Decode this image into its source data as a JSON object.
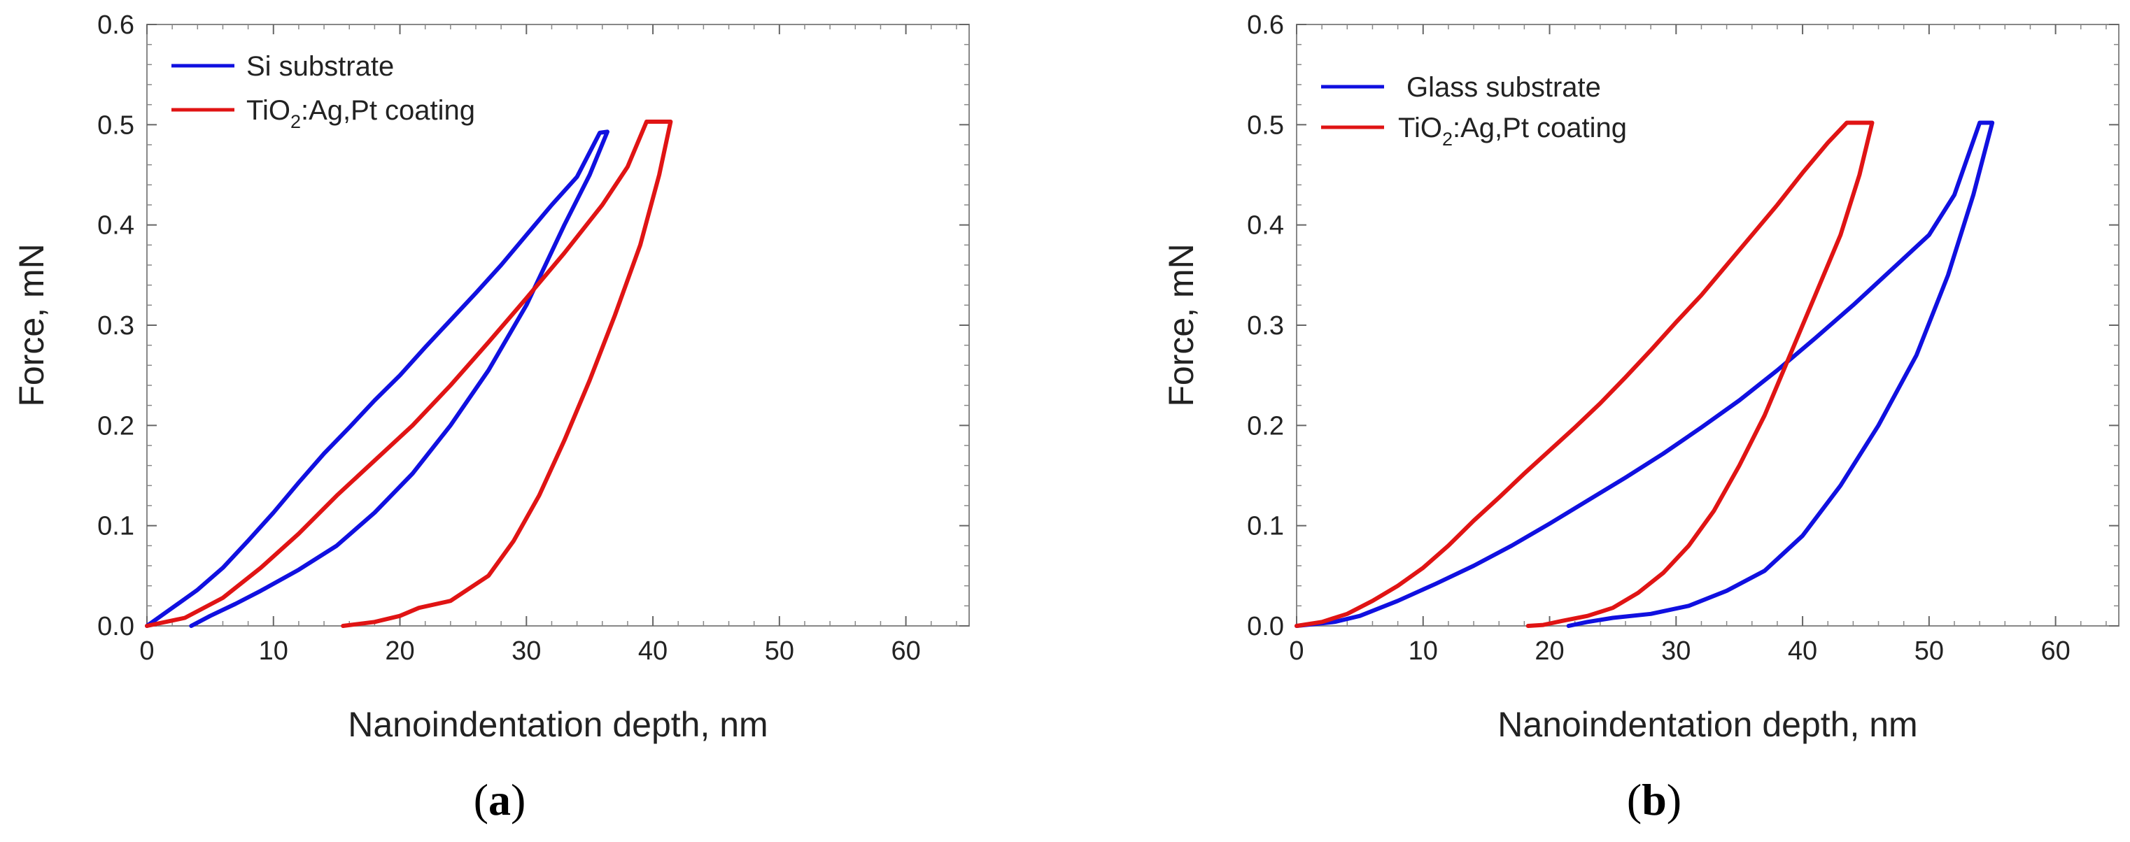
{
  "figure": {
    "panels": [
      "a",
      "b"
    ]
  },
  "chart_data": [
    {
      "type": "line",
      "panel_label": "(a)",
      "panel_letter": "a",
      "xlabel": "Nanoindentation depth,  nm",
      "ylabel": "Force,  mN",
      "xlim": [
        0,
        65
      ],
      "ylim": [
        0,
        0.6
      ],
      "xticks": [
        0,
        10,
        20,
        30,
        40,
        50,
        60
      ],
      "yticks": [
        0.0,
        0.1,
        0.2,
        0.3,
        0.4,
        0.5,
        0.6
      ],
      "ytick_labels": [
        "0.0",
        "0.1",
        "0.2",
        "0.3",
        "0.4",
        "0.5",
        "0.6"
      ],
      "legend_position": "top-left",
      "series": [
        {
          "name": "Si substrate",
          "legend_label": "Si substrate",
          "color": "#1010e0",
          "loading": [
            [
              0,
              0
            ],
            [
              2,
              0.018
            ],
            [
              4,
              0.036
            ],
            [
              6,
              0.058
            ],
            [
              8,
              0.085
            ],
            [
              10,
              0.113
            ],
            [
              12,
              0.143
            ],
            [
              14,
              0.172
            ],
            [
              16,
              0.198
            ],
            [
              18,
              0.225
            ],
            [
              20,
              0.25
            ],
            [
              22,
              0.278
            ],
            [
              24,
              0.305
            ],
            [
              26,
              0.332
            ],
            [
              28,
              0.36
            ],
            [
              30,
              0.39
            ],
            [
              32,
              0.42
            ],
            [
              34,
              0.448
            ],
            [
              35.8,
              0.492
            ]
          ],
          "hold": [
            [
              35.8,
              0.492
            ],
            [
              36.4,
              0.493
            ]
          ],
          "unloading": [
            [
              36.4,
              0.493
            ],
            [
              35,
              0.45
            ],
            [
              33,
              0.4
            ],
            [
              30,
              0.32
            ],
            [
              27,
              0.255
            ],
            [
              24,
              0.2
            ],
            [
              21,
              0.152
            ],
            [
              18,
              0.113
            ],
            [
              15,
              0.08
            ],
            [
              12,
              0.056
            ],
            [
              9,
              0.035
            ],
            [
              7,
              0.022
            ],
            [
              5,
              0.01
            ],
            [
              3.5,
              0
            ]
          ]
        },
        {
          "name": "TiO2:Ag,Pt coating",
          "legend_label": "TiO",
          "legend_sub": "2",
          "legend_rest": ":Ag,Pt coating",
          "color": "#e01414",
          "loading": [
            [
              0,
              0
            ],
            [
              3,
              0.008
            ],
            [
              6,
              0.028
            ],
            [
              9,
              0.058
            ],
            [
              12,
              0.092
            ],
            [
              15,
              0.13
            ],
            [
              18,
              0.165
            ],
            [
              21,
              0.2
            ],
            [
              24,
              0.24
            ],
            [
              27,
              0.283
            ],
            [
              30,
              0.327
            ],
            [
              33,
              0.372
            ],
            [
              36,
              0.42
            ],
            [
              38,
              0.458
            ],
            [
              39.5,
              0.503
            ]
          ],
          "hold": [
            [
              39.5,
              0.503
            ],
            [
              41.4,
              0.503
            ]
          ],
          "unloading": [
            [
              41.4,
              0.503
            ],
            [
              40.5,
              0.45
            ],
            [
              39,
              0.38
            ],
            [
              37,
              0.31
            ],
            [
              35,
              0.245
            ],
            [
              33,
              0.185
            ],
            [
              31,
              0.13
            ],
            [
              29,
              0.085
            ],
            [
              27,
              0.05
            ],
            [
              24,
              0.025
            ],
            [
              21.5,
              0.018
            ],
            [
              20,
              0.01
            ],
            [
              18,
              0.004
            ],
            [
              15.5,
              0
            ]
          ]
        }
      ]
    },
    {
      "type": "line",
      "panel_label": "(b)",
      "panel_letter": "b",
      "xlabel": "Nanoindentation depth,  nm",
      "ylabel": "Force,  mN",
      "xlim": [
        0,
        65
      ],
      "ylim": [
        0,
        0.6
      ],
      "xticks": [
        0,
        10,
        20,
        30,
        40,
        50,
        60
      ],
      "yticks": [
        0.0,
        0.1,
        0.2,
        0.3,
        0.4,
        0.5,
        0.6
      ],
      "ytick_labels": [
        "0.0",
        "0.1",
        "0.2",
        "0.3",
        "0.4",
        "0.5",
        "0.6"
      ],
      "legend_position": "top-left",
      "series": [
        {
          "name": "Glass substrate",
          "legend_label": "Glass substrate",
          "color": "#1010e0",
          "loading": [
            [
              0,
              0
            ],
            [
              3,
              0.004
            ],
            [
              5,
              0.01
            ],
            [
              8,
              0.025
            ],
            [
              11,
              0.042
            ],
            [
              14,
              0.06
            ],
            [
              17,
              0.08
            ],
            [
              20,
              0.102
            ],
            [
              23,
              0.125
            ],
            [
              26,
              0.148
            ],
            [
              29,
              0.172
            ],
            [
              32,
              0.198
            ],
            [
              35,
              0.225
            ],
            [
              38,
              0.255
            ],
            [
              41,
              0.287
            ],
            [
              44,
              0.32
            ],
            [
              47,
              0.355
            ],
            [
              50,
              0.39
            ],
            [
              52,
              0.43
            ],
            [
              54,
              0.502
            ]
          ],
          "hold": [
            [
              54,
              0.502
            ],
            [
              55,
              0.502
            ]
          ],
          "unloading": [
            [
              55,
              0.502
            ],
            [
              53.5,
              0.43
            ],
            [
              51.5,
              0.35
            ],
            [
              49,
              0.27
            ],
            [
              46,
              0.2
            ],
            [
              43,
              0.14
            ],
            [
              40,
              0.09
            ],
            [
              37,
              0.055
            ],
            [
              34,
              0.035
            ],
            [
              31,
              0.02
            ],
            [
              28,
              0.012
            ],
            [
              25,
              0.008
            ],
            [
              23,
              0.004
            ],
            [
              21.5,
              0
            ]
          ]
        },
        {
          "name": "TiO2:Ag,Pt coating",
          "legend_label": "TiO",
          "legend_sub": "2",
          "legend_rest": ":Ag,Pt coating",
          "color": "#e01414",
          "loading": [
            [
              0,
              0
            ],
            [
              2,
              0.004
            ],
            [
              4,
              0.012
            ],
            [
              6,
              0.025
            ],
            [
              8,
              0.04
            ],
            [
              10,
              0.058
            ],
            [
              12,
              0.08
            ],
            [
              14,
              0.105
            ],
            [
              16,
              0.128
            ],
            [
              18,
              0.152
            ],
            [
              20,
              0.175
            ],
            [
              22,
              0.198
            ],
            [
              24,
              0.222
            ],
            [
              26,
              0.248
            ],
            [
              28,
              0.275
            ],
            [
              30,
              0.303
            ],
            [
              32,
              0.33
            ],
            [
              34,
              0.36
            ],
            [
              36,
              0.39
            ],
            [
              38,
              0.42
            ],
            [
              40,
              0.452
            ],
            [
              42,
              0.482
            ],
            [
              43.5,
              0.502
            ]
          ],
          "hold": [
            [
              43.5,
              0.502
            ],
            [
              45.5,
              0.502
            ]
          ],
          "unloading": [
            [
              45.5,
              0.502
            ],
            [
              44.5,
              0.45
            ],
            [
              43,
              0.39
            ],
            [
              41,
              0.33
            ],
            [
              39,
              0.27
            ],
            [
              37,
              0.21
            ],
            [
              35,
              0.16
            ],
            [
              33,
              0.115
            ],
            [
              31,
              0.08
            ],
            [
              29,
              0.053
            ],
            [
              27,
              0.033
            ],
            [
              25,
              0.018
            ],
            [
              23,
              0.01
            ],
            [
              21,
              0.005
            ],
            [
              19.5,
              0.001
            ],
            [
              18.3,
              0
            ]
          ]
        }
      ]
    }
  ]
}
